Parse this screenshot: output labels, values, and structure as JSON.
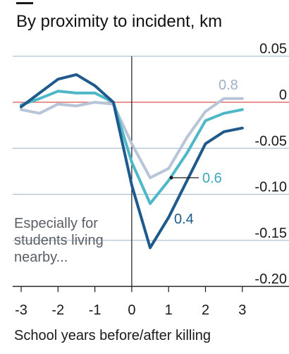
{
  "chart_data": {
    "type": "line",
    "title": "By proximity to incident, km",
    "xlabel": "School years before/after killing",
    "ylabel": "",
    "x": [
      -3,
      -2.5,
      -2,
      -1.5,
      -1,
      -0.5,
      0,
      0.5,
      1,
      1.5,
      2,
      2.5,
      3
    ],
    "x_ticks": [
      "-3",
      "-2",
      "-1",
      "0",
      "1",
      "2",
      "3"
    ],
    "y_ticks": [
      "0.05",
      "0",
      "-0.05",
      "-0.10",
      "-0.15",
      "-0.20"
    ],
    "xlim": [
      -3.2,
      3.2
    ],
    "ylim": [
      -0.2,
      0.05
    ],
    "grid": "horizontal",
    "zero_line_color": "#d9534f",
    "series": [
      {
        "name": "0.4",
        "color": "#1f5a8c",
        "values": [
          -0.005,
          0.01,
          0.025,
          0.03,
          0.018,
          0.0,
          -0.09,
          -0.158,
          -0.125,
          -0.085,
          -0.045,
          -0.032,
          -0.028
        ]
      },
      {
        "name": "0.6",
        "color": "#4fb8c8",
        "values": [
          -0.003,
          0.004,
          0.012,
          0.01,
          0.01,
          0.0,
          -0.065,
          -0.11,
          -0.085,
          -0.055,
          -0.02,
          -0.012,
          -0.008
        ]
      },
      {
        "name": "0.8",
        "color": "#b8c4d8",
        "values": [
          -0.008,
          -0.012,
          -0.002,
          -0.004,
          0.0,
          -0.002,
          -0.045,
          -0.082,
          -0.072,
          -0.038,
          -0.01,
          0.004,
          0.004
        ]
      }
    ],
    "annotation": [
      "Especially for",
      "students living",
      "nearby..."
    ]
  }
}
